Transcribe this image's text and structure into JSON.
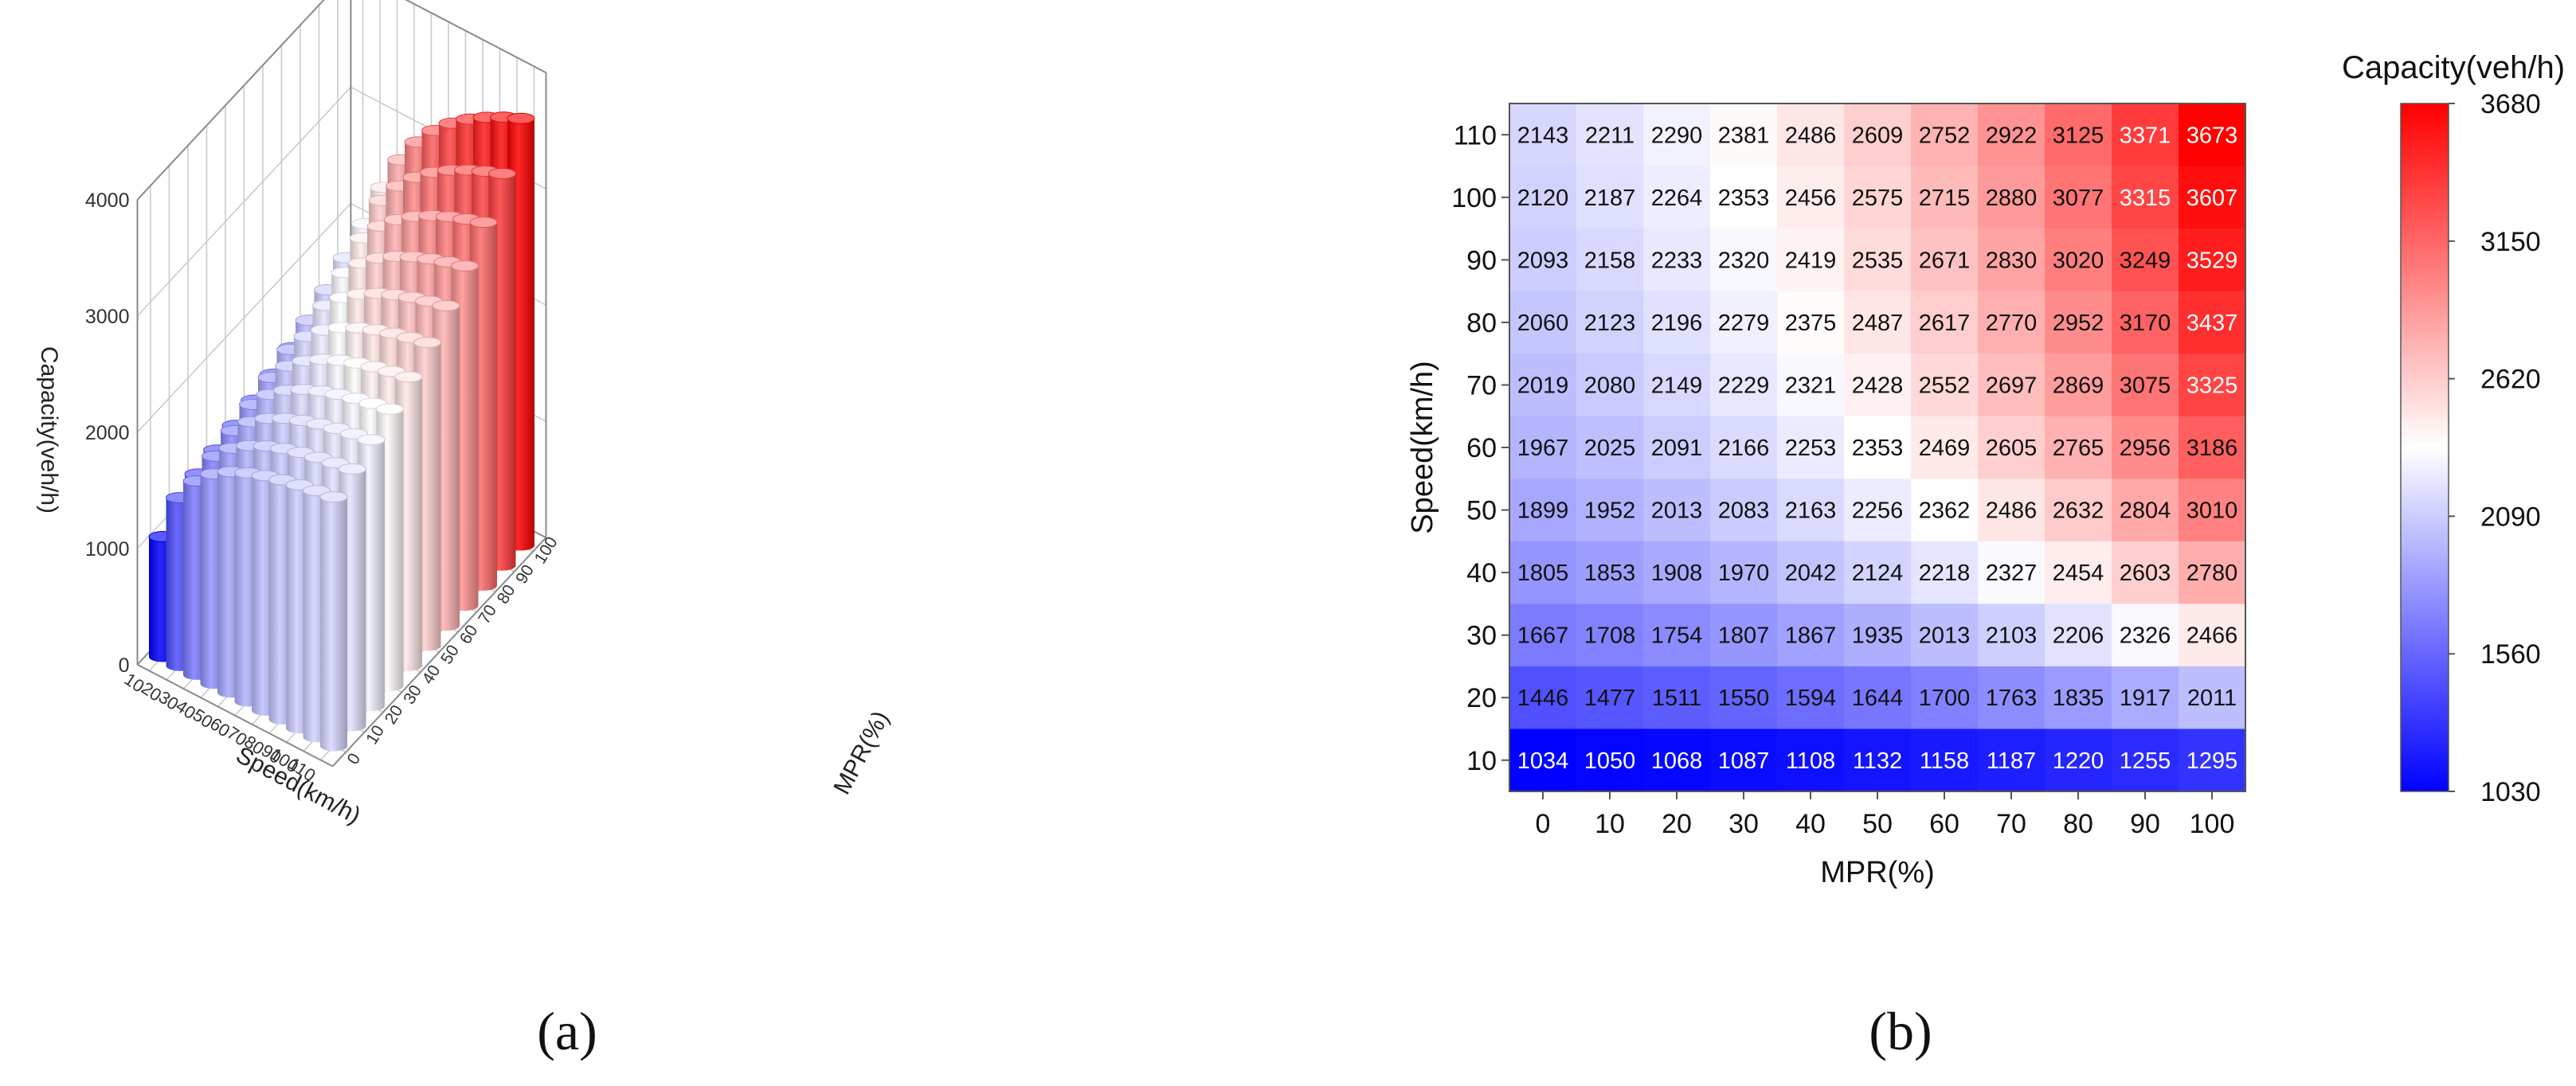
{
  "panel_labels": {
    "a": "(a)",
    "b": "(b)"
  },
  "chart_data": [
    {
      "type": "bar3d",
      "panel": "a",
      "title": "",
      "xlabel": "Speed(km/h)",
      "ylabel": "MPR(%)",
      "zlabel": "Capacity(veh/h)",
      "zlim": [
        0,
        4000
      ],
      "zticks": [
        0,
        1000,
        2000,
        3000,
        4000
      ],
      "speed_ticks": [
        10,
        20,
        30,
        40,
        50,
        60,
        70,
        80,
        90,
        100,
        110
      ],
      "mpr_ticks": [
        0,
        10,
        20,
        30,
        40,
        50,
        60,
        70,
        80,
        90,
        100
      ],
      "grid": true,
      "source": "same values as panel b"
    },
    {
      "type": "heatmap",
      "panel": "b",
      "xlabel": "MPR(%)",
      "ylabel": "Speed(km/h)",
      "colorbar_title": "Capacity(veh/h)",
      "colorbar_ticks": [
        1030,
        1560,
        2090,
        2620,
        3150,
        3680
      ],
      "color_range": [
        1030,
        3680
      ],
      "colors": {
        "low": "#0000ff",
        "mid": "#ffffff",
        "high": "#ff0000"
      },
      "x": [
        0,
        10,
        20,
        30,
        40,
        50,
        60,
        70,
        80,
        90,
        100
      ],
      "y": [
        110,
        100,
        90,
        80,
        70,
        60,
        50,
        40,
        30,
        20,
        10
      ],
      "values": [
        [
          2143,
          2211,
          2290,
          2381,
          2486,
          2609,
          2752,
          2922,
          3125,
          3371,
          3673
        ],
        [
          2120,
          2187,
          2264,
          2353,
          2456,
          2575,
          2715,
          2880,
          3077,
          3315,
          3607
        ],
        [
          2093,
          2158,
          2233,
          2320,
          2419,
          2535,
          2671,
          2830,
          3020,
          3249,
          3529
        ],
        [
          2060,
          2123,
          2196,
          2279,
          2375,
          2487,
          2617,
          2770,
          2952,
          3170,
          3437
        ],
        [
          2019,
          2080,
          2149,
          2229,
          2321,
          2428,
          2552,
          2697,
          2869,
          3075,
          3325
        ],
        [
          1967,
          2025,
          2091,
          2166,
          2253,
          2353,
          2469,
          2605,
          2765,
          2956,
          3186
        ],
        [
          1899,
          1952,
          2013,
          2083,
          2163,
          2256,
          2362,
          2486,
          2632,
          2804,
          3010
        ],
        [
          1805,
          1853,
          1908,
          1970,
          2042,
          2124,
          2218,
          2327,
          2454,
          2603,
          2780
        ],
        [
          1667,
          1708,
          1754,
          1807,
          1867,
          1935,
          2013,
          2103,
          2206,
          2326,
          2466
        ],
        [
          1446,
          1477,
          1511,
          1550,
          1594,
          1644,
          1700,
          1763,
          1835,
          1917,
          2011
        ],
        [
          1034,
          1050,
          1068,
          1087,
          1108,
          1132,
          1158,
          1187,
          1220,
          1255,
          1295
        ]
      ]
    }
  ]
}
